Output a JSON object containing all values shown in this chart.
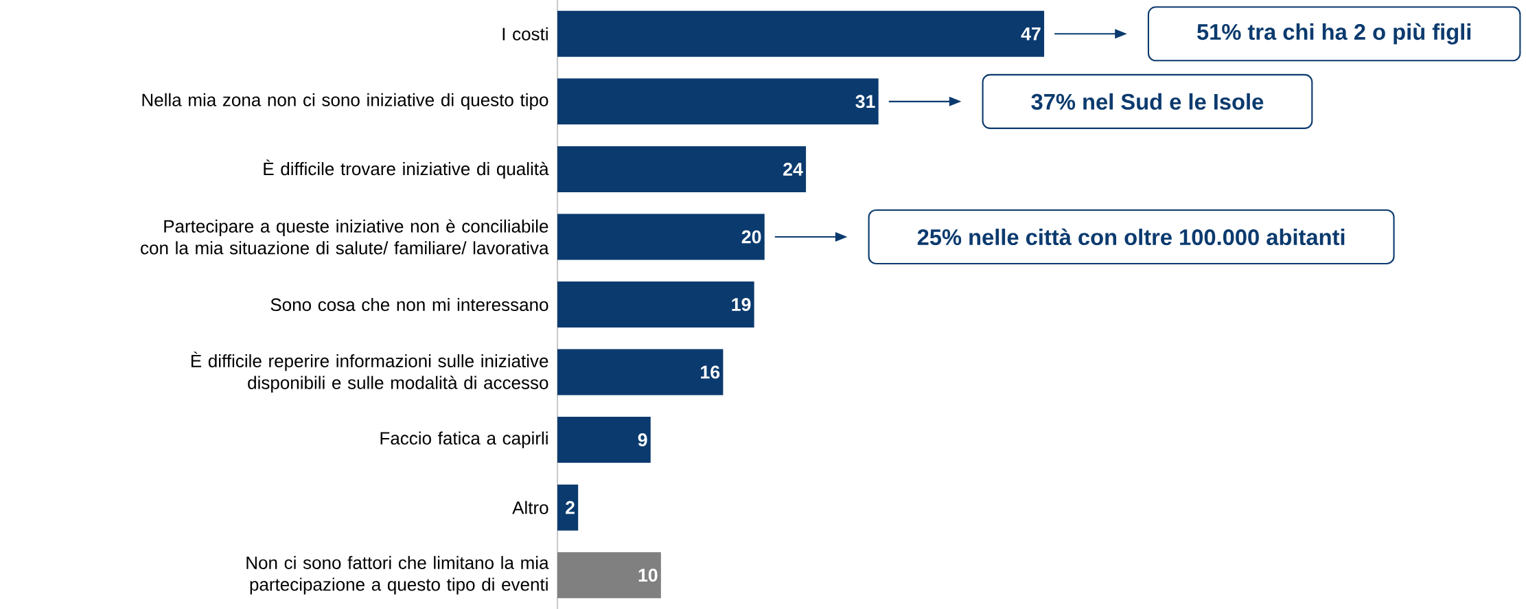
{
  "chart_data": {
    "type": "bar",
    "orientation": "horizontal",
    "data_labels": true,
    "categories": [
      "I costi",
      "Nella mia zona non ci sono iniziative di questo tipo",
      "È difficile trovare iniziative di qualità",
      "Partecipare a queste iniziative non è conciliabile con la mia situazione di salute/ familiare/ lavorativa",
      "Sono cosa che non mi interessano",
      "È difficile reperire informazioni sulle iniziative disponibili e sulle modalità di accesso",
      "Faccio fatica a capirli",
      "Altro",
      "Non ci sono fattori che limitano la mia partecipazione a questo tipo di eventi"
    ],
    "values": [
      47,
      31,
      24,
      20,
      19,
      16,
      9,
      2,
      10
    ],
    "colors": [
      "#0b3a6e",
      "#0b3a6e",
      "#0b3a6e",
      "#0b3a6e",
      "#0b3a6e",
      "#0b3a6e",
      "#0b3a6e",
      "#0b3a6e",
      "#808080"
    ],
    "annotations": [
      "51% tra chi ha 2 o più figli",
      "37% nel Sud e le Isole",
      "25% nelle città con oltre 100.000 abitanti"
    ]
  }
}
